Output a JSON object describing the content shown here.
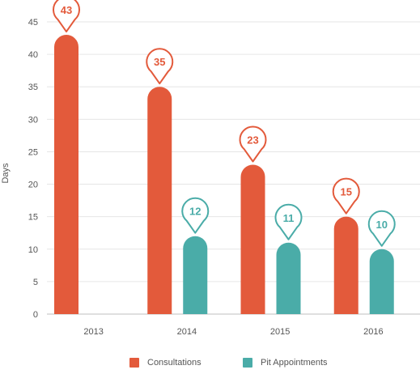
{
  "chart_data": {
    "type": "bar",
    "title": "",
    "xlabel": "",
    "ylabel": "Days",
    "ylim": [
      0,
      45
    ],
    "yticks": [
      0,
      5,
      10,
      15,
      20,
      25,
      30,
      35,
      40,
      45
    ],
    "categories": [
      "2013",
      "2014",
      "2015",
      "2016"
    ],
    "series": [
      {
        "name": "Consultations",
        "color": "#e35a3b",
        "values": [
          43,
          35,
          23,
          15
        ]
      },
      {
        "name": "Pit Appointments",
        "color": "#4aaca8",
        "values": [
          null,
          12,
          11,
          10
        ]
      }
    ],
    "grid": true,
    "legend_position": "bottom"
  }
}
